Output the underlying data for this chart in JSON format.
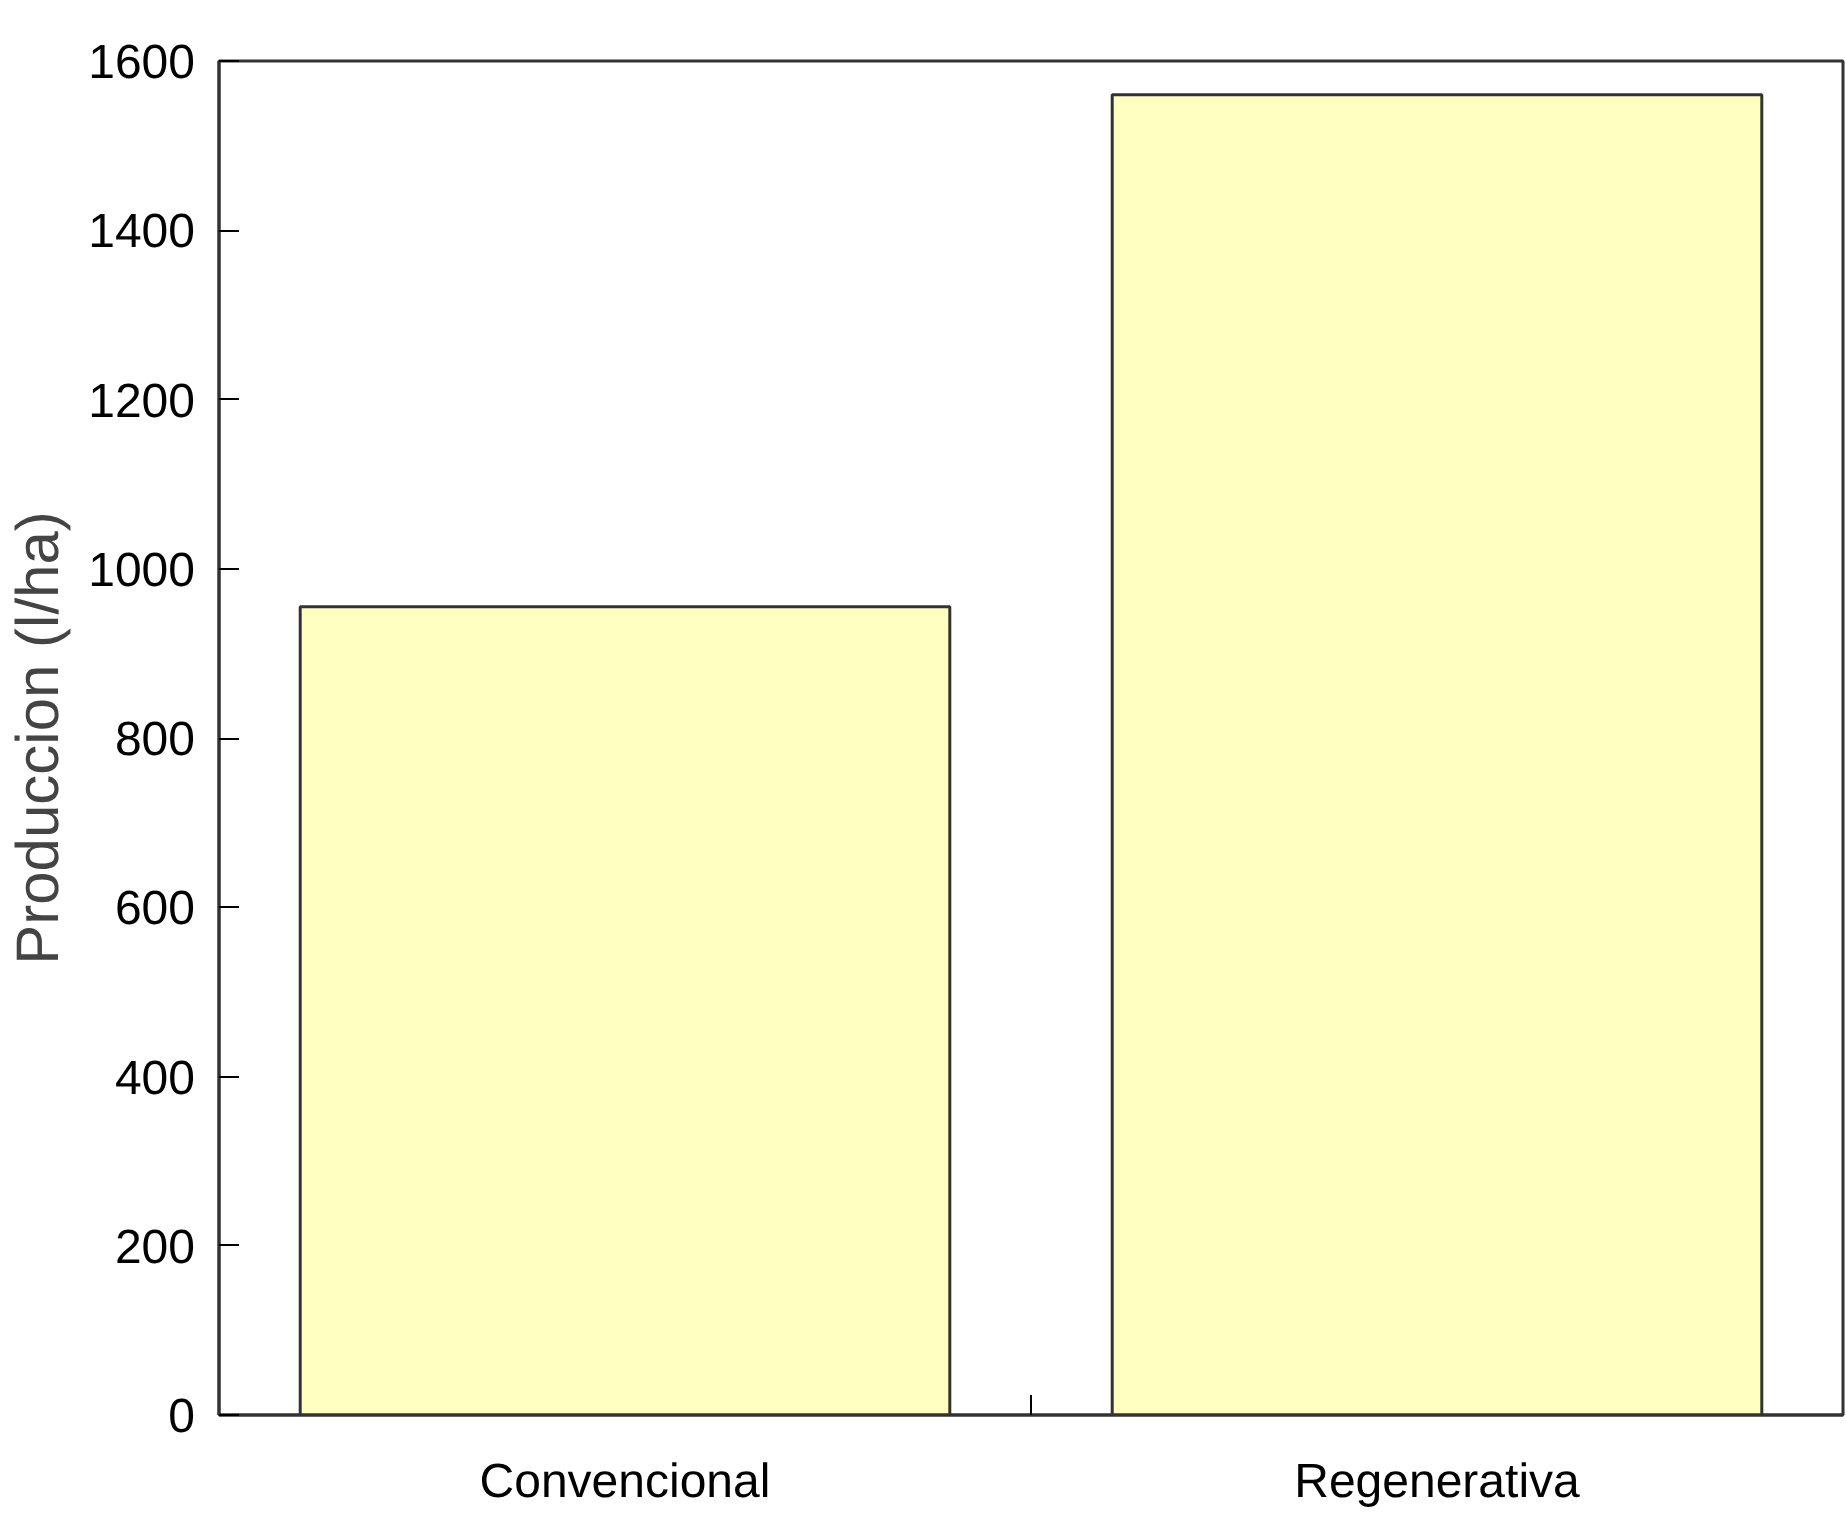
{
  "chart_data": {
    "type": "bar",
    "ylabel": "Produccion (l/ha)",
    "categories": [
      "Convencional",
      "Regenerativa"
    ],
    "values": [
      955,
      1560
    ],
    "color": "#ffffc0",
    "ylim": [
      0,
      1600
    ],
    "yticks": [
      0,
      200,
      400,
      600,
      800,
      1000,
      1200,
      1400,
      1600
    ],
    "grid": false
  }
}
